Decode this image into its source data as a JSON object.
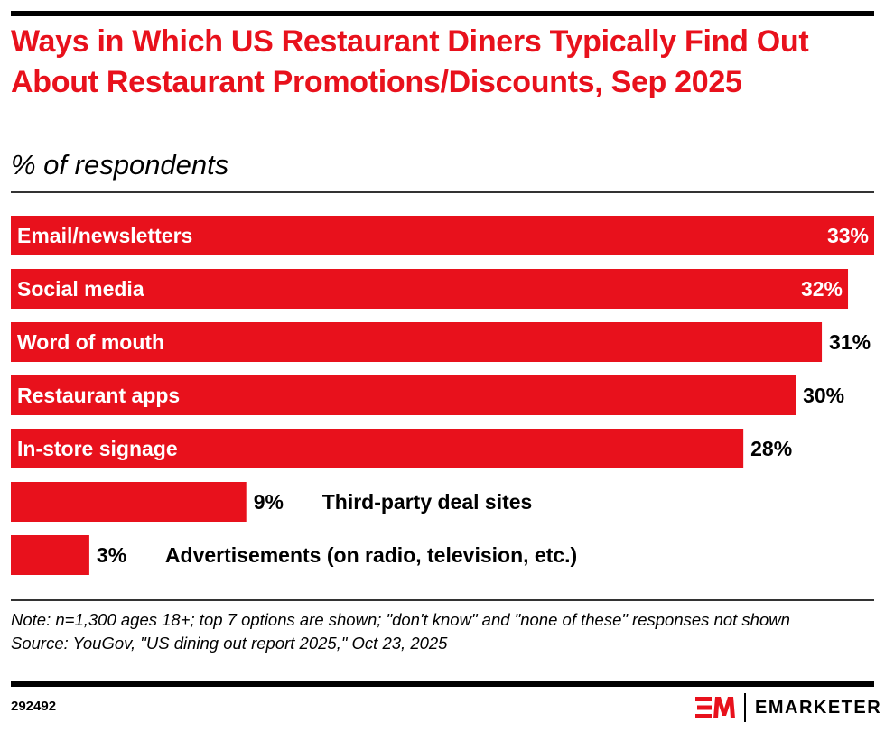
{
  "title": "Ways in Which US Restaurant Diners Typically Find Out About Restaurant Promotions/Discounts, Sep 2025",
  "subtitle": "% of respondents",
  "colors": {
    "bar": "#e8111c",
    "title": "#e8111c",
    "text": "#000000",
    "inside_text": "#ffffff"
  },
  "chart_data": {
    "type": "bar",
    "orientation": "horizontal",
    "categories": [
      "Email/newsletters",
      "Social media",
      "Word of mouth",
      "Restaurant apps",
      "In-store signage",
      "Third-party deal sites",
      "Advertisements (on radio, television, etc.)"
    ],
    "values": [
      33,
      32,
      31,
      30,
      28,
      9,
      3
    ],
    "value_labels": [
      "33%",
      "32%",
      "31%",
      "30%",
      "28%",
      "9%",
      "3%"
    ],
    "xlim": [
      0,
      33
    ],
    "grid": false,
    "legend": "none"
  },
  "footer": {
    "note": "Note: n=1,300 ages 18+; top 7 options are shown; \"don't know\" and \"none of these\" responses not shown",
    "source": "Source: YouGov, \"US dining out report 2025,\" Oct 23, 2025",
    "chart_id": "292492",
    "brand": "EMARKETER"
  }
}
